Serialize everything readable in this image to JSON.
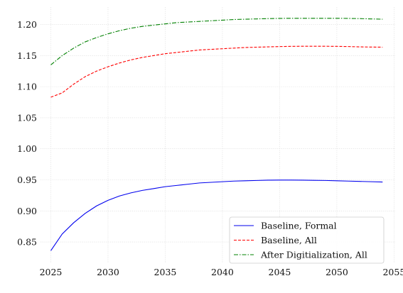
{
  "chart_data": {
    "type": "line",
    "title": "",
    "xlabel": "",
    "ylabel": "",
    "xlim": [
      2024.1,
      2055.1
    ],
    "ylim": [
      0.817,
      1.228
    ],
    "xticks": [
      2025,
      2030,
      2035,
      2040,
      2045,
      2050,
      2055
    ],
    "yticks": [
      0.85,
      0.9,
      0.95,
      1.0,
      1.05,
      1.1,
      1.15,
      1.2
    ],
    "xtick_labels": [
      "2025",
      "2030",
      "2035",
      "2040",
      "2045",
      "2050",
      "2055"
    ],
    "ytick_labels": [
      "0.85",
      "0.90",
      "0.95",
      "1.00",
      "1.05",
      "1.10",
      "1.15",
      "1.20"
    ],
    "grid": true,
    "legend_position": "lower-right",
    "x": [
      2025,
      2026,
      2027,
      2028,
      2029,
      2030,
      2031,
      2032,
      2033,
      2034,
      2035,
      2036,
      2037,
      2038,
      2039,
      2040,
      2041,
      2042,
      2043,
      2044,
      2045,
      2046,
      2047,
      2048,
      2049,
      2050,
      2051,
      2052,
      2053,
      2054
    ],
    "series": [
      {
        "name": "Baseline, Formal",
        "color": "#0000ee",
        "style": "solid",
        "values": [
          0.836,
          0.863,
          0.881,
          0.896,
          0.908,
          0.917,
          0.924,
          0.929,
          0.933,
          0.936,
          0.939,
          0.941,
          0.943,
          0.945,
          0.946,
          0.947,
          0.948,
          0.9485,
          0.949,
          0.9495,
          0.9497,
          0.9497,
          0.9495,
          0.9492,
          0.949,
          0.9485,
          0.948,
          0.9475,
          0.947,
          0.9465
        ]
      },
      {
        "name": "Baseline, All",
        "color": "#ff0000",
        "style": "dashed",
        "values": [
          1.083,
          1.09,
          1.104,
          1.116,
          1.125,
          1.132,
          1.138,
          1.143,
          1.147,
          1.15,
          1.153,
          1.155,
          1.157,
          1.159,
          1.16,
          1.161,
          1.162,
          1.163,
          1.1635,
          1.164,
          1.1645,
          1.1648,
          1.165,
          1.165,
          1.165,
          1.1648,
          1.1645,
          1.164,
          1.1637,
          1.1635
        ]
      },
      {
        "name": "After Digitialization, All",
        "color": "#008000",
        "style": "dashdot",
        "values": [
          1.135,
          1.15,
          1.162,
          1.172,
          1.179,
          1.185,
          1.19,
          1.194,
          1.197,
          1.199,
          1.201,
          1.203,
          1.204,
          1.205,
          1.206,
          1.207,
          1.208,
          1.2085,
          1.209,
          1.2095,
          1.2098,
          1.21,
          1.21,
          1.21,
          1.21,
          1.21,
          1.2098,
          1.2095,
          1.209,
          1.2085
        ]
      }
    ]
  }
}
